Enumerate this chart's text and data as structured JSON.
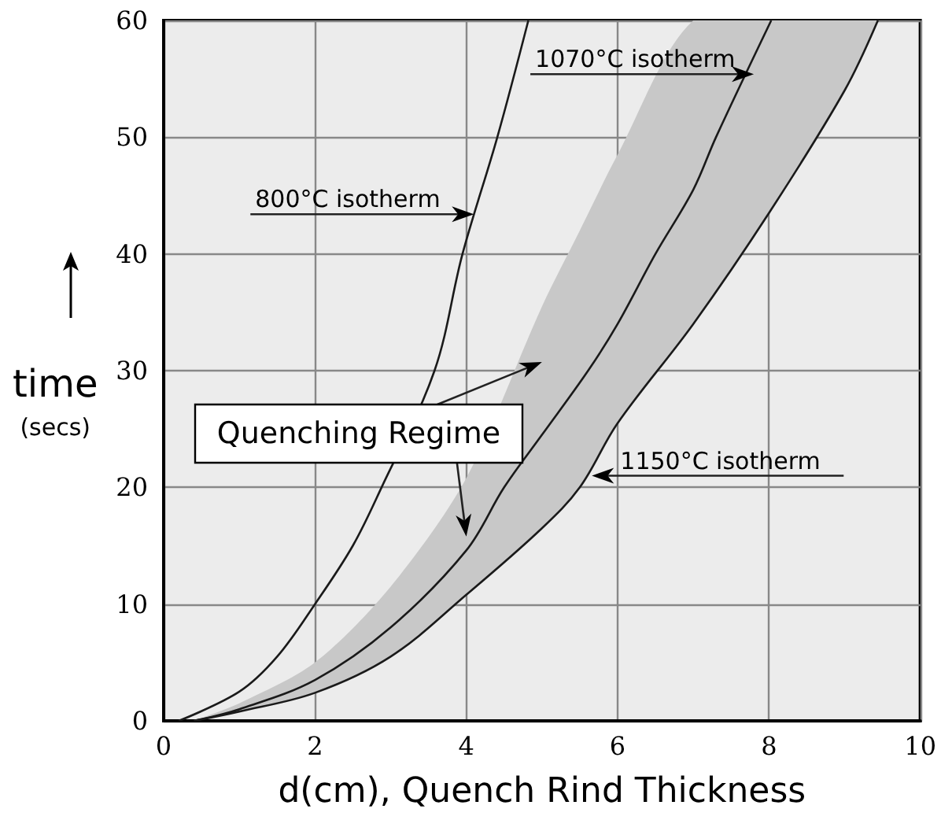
{
  "chart_data": {
    "type": "line",
    "xlabel": "d(cm), Quench Rind Thickness",
    "ylabel": "time (secs)",
    "xlim": [
      0,
      10
    ],
    "xticks": [
      0,
      2,
      4,
      6,
      8,
      10
    ],
    "ylim": [
      0,
      60
    ],
    "yticks": [
      0,
      10,
      20,
      30,
      40,
      50,
      60
    ],
    "grid": true,
    "marker": "none",
    "line_style": "solid",
    "series": [
      {
        "type": "area",
        "name": "Quenching Regime",
        "color": "#c8c8c8",
        "x": [
          0.4,
          1,
          2,
          3,
          4,
          5,
          5.5,
          6,
          7,
          8,
          9,
          9.44
        ],
        "values": [
          0,
          1.5,
          5,
          11.5,
          20.8,
          35.5,
          42,
          48.5,
          60,
          60,
          60,
          60
        ]
      },
      {
        "color": "#1a1a1a",
        "x": [
          0.2,
          1,
          1.5,
          2,
          2.5,
          2.88,
          3.58,
          3.95,
          4.41,
          4.82
        ],
        "values": [
          0,
          2.5,
          5.5,
          10,
          15,
          20,
          30,
          40,
          50,
          60
        ]
      },
      {
        "color": "#1a1a1a",
        "x": [
          0.4,
          1,
          2,
          3,
          4,
          4.5,
          5,
          5.61,
          6,
          6.5,
          7,
          7.3,
          8.03
        ],
        "values": [
          0,
          1,
          3.5,
          8,
          14.6,
          20,
          24.5,
          30,
          34,
          40,
          45.5,
          50,
          60
        ]
      },
      {
        "color": "#1a1a1a",
        "x": [
          0.4,
          1,
          2,
          3,
          4,
          5,
          5.5,
          6,
          7,
          8,
          9,
          9.44
        ],
        "values": [
          0,
          0.8,
          2.4,
          5.5,
          10.8,
          16.5,
          20,
          25.5,
          34,
          43.5,
          54,
          60
        ]
      }
    ],
    "annotations": [
      {
        "text": "800°C isotherm",
        "x": 4.1,
        "y": 43.4
      },
      {
        "text": "1070°C isotherm",
        "x": 7.8,
        "y": 55.4
      },
      {
        "text": "1150°C isotherm",
        "x": 5.66,
        "y": 21
      }
    ]
  }
}
